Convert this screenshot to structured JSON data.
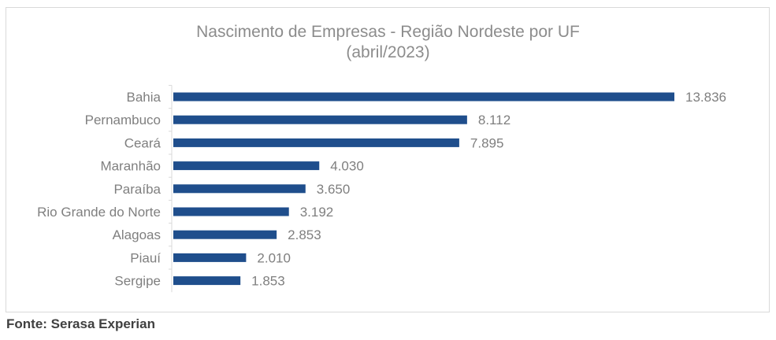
{
  "chart_data": {
    "type": "bar",
    "orientation": "horizontal",
    "title": "Nascimento de Empresas  - Região Nordeste por UF",
    "subtitle": "(abril/2023)",
    "categories": [
      "Bahia",
      "Pernambuco",
      "Ceará",
      "Maranhão",
      "Paraíba",
      "Rio Grande do Norte",
      "Alagoas",
      "Piauí",
      "Sergipe"
    ],
    "values": [
      13836,
      8112,
      7895,
      4030,
      3650,
      3192,
      2853,
      2010,
      1853
    ],
    "value_labels": [
      "13.836",
      "8.112",
      "7.895",
      "4.030",
      "3.650",
      "3.192",
      "2.853",
      "2.010",
      "1.853"
    ],
    "bar_color": "#1f4e8c",
    "xlim": [
      0,
      13836
    ],
    "grid": false,
    "legend": "none"
  },
  "source": "Fonte: Serasa Experian"
}
